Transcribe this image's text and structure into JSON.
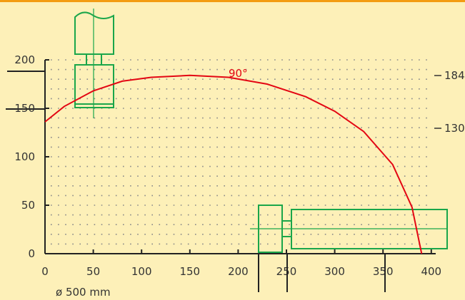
{
  "chart_data": {
    "type": "line",
    "x_ticks": [
      0,
      50,
      100,
      150,
      200,
      250,
      300,
      350,
      400
    ],
    "y_ticks": [
      0,
      50,
      100,
      150,
      200
    ],
    "xlim": [
      0,
      410
    ],
    "ylim": [
      0,
      200
    ],
    "grid": "dotted",
    "reference_values": [
      184,
      130
    ],
    "series": [
      {
        "name": "90°",
        "color": "#e30613",
        "x": [
          0,
          20,
          50,
          80,
          110,
          150,
          190,
          230,
          270,
          300,
          330,
          360,
          380,
          390
        ],
        "y": [
          136,
          152,
          168,
          178,
          182,
          184,
          182,
          175,
          162,
          147,
          126,
          92,
          48,
          0
        ]
      }
    ],
    "note": "ø 500 mm"
  },
  "colors": {
    "background": "#fdf0b8",
    "accent": "#f39c12",
    "curve": "#e30613",
    "shape": "#1aa64a"
  }
}
